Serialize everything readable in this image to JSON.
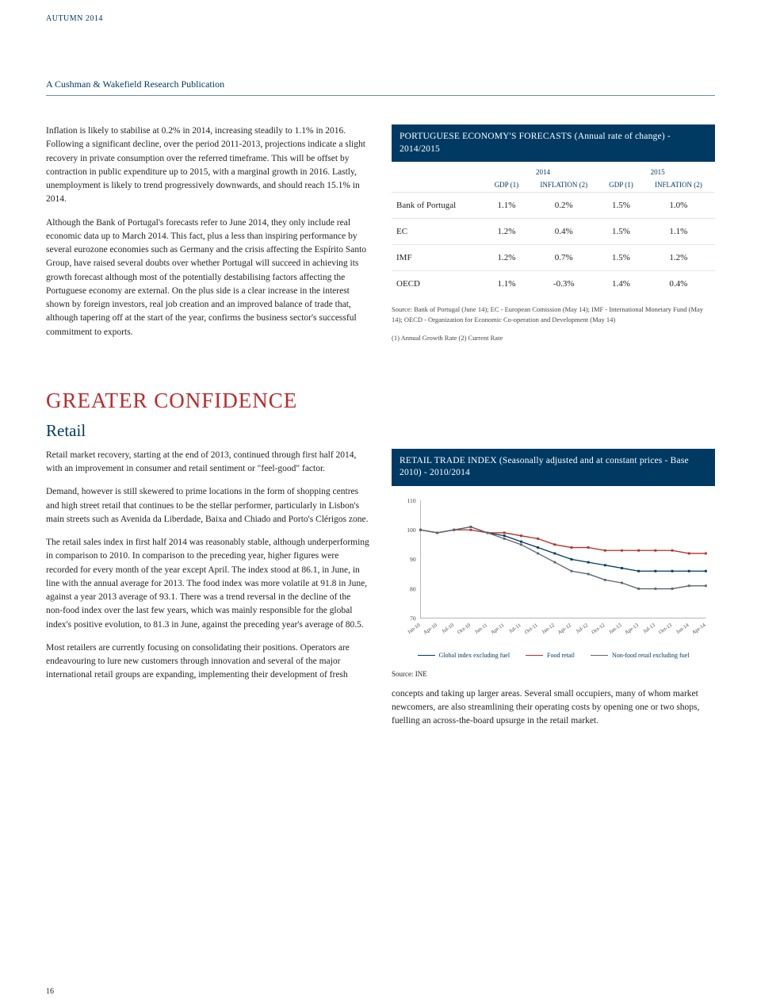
{
  "header": {
    "season": "AUTUMN 2014",
    "publication": "A Cushman & Wakefield Research Publication"
  },
  "intro": {
    "p1": "Inflation is likely to stabilise at 0.2% in 2014, increasing steadily to 1.1% in 2016. Following a significant decline, over the period 2011-2013, projections indicate a slight recovery in private consumption over the referred timeframe. This will be offset by contraction in public expenditure up to 2015, with a marginal growth in 2016. Lastly, unemployment is likely to trend progressively downwards, and should reach 15.1% in 2014.",
    "p2": "Although the Bank of Portugal's forecasts refer to June 2014, they only include real economic data up to March 2014. This fact, plus a less than inspiring performance by several eurozone economies such as Germany and the crisis affecting the Espírito Santo Group, have raised several doubts over whether Portugal will succeed in achieving its growth forecast although most of the potentially destabilising factors affecting the Portuguese economy are external. On the plus side is a clear increase in the interest shown by foreign investors, real job creation and an improved balance of trade that, although tapering off at the start of the year, confirms the business sector's successful commitment to exports."
  },
  "forecast_panel": {
    "title": "PORTUGUESE ECONOMY'S FORECASTS (Annual rate of change) - 2014/2015",
    "year1": "2014",
    "year2": "2015",
    "col_gdp": "GDP (1)",
    "col_inf": "INFLATION (2)",
    "rows": [
      {
        "label": "Bank of Portugal",
        "v1": "1.1%",
        "v2": "0.2%",
        "v3": "1.5%",
        "v4": "1.0%"
      },
      {
        "label": "EC",
        "v1": "1.2%",
        "v2": "0.4%",
        "v3": "1.5%",
        "v4": "1.1%"
      },
      {
        "label": "IMF",
        "v1": "1.2%",
        "v2": "0.7%",
        "v3": "1.5%",
        "v4": "1.2%"
      },
      {
        "label": "OECD",
        "v1": "1.1%",
        "v2": "-0.3%",
        "v3": "1.4%",
        "v4": "0.4%"
      }
    ],
    "source": "Source: Bank of Portugal (June 14); EC - European Comission (May 14); IMF - International Monetary Fund (May 14); OECD - Organization for Economic Co-operation and Development (May 14)",
    "footnote": "(1) Annual Growth Rate          (2) Current Rate"
  },
  "section2": {
    "h1": "GREATER CONFIDENCE",
    "h2": "Retail",
    "left": {
      "p1": "Retail market recovery, starting at the end of 2013, continued through first half 2014, with an improvement in consumer and retail sentiment or \"feel-good\" factor.",
      "p2": "Demand, however is still skewered to prime locations in the form of shopping centres and high street retail that continues to be the stellar performer, particularly in Lisbon's main streets such as Avenida da Liberdade, Baixa and Chiado and Porto's Clérigos zone.",
      "p3": "The retail sales index in first half 2014 was reasonably stable, although underperforming in comparison to 2010. In comparison to the preceding year, higher figures were recorded for every month of the year except April. The index stood at 86.1, in June, in line with the annual average for 2013. The food index was more volatile at 91.8 in June, against a year 2013 average of 93.1. There was a trend reversal in the decline of the non-food index over the last few years, which was mainly responsible for the global index's positive evolution, to 81.3 in June, against the preceding year's average of 80.5.",
      "p4": "Most retailers are currently focusing on consolidating their positions. Operators are endeavouring to lure new customers through innovation and several of the major international retail groups are expanding, implementing their development of fresh"
    },
    "right": {
      "chart_title": "RETAIL TRADE INDEX (Seasonally adjusted and at constant prices - Base 2010) - 2010/2014",
      "chart": {
        "type": "line",
        "y_ticks": [
          70,
          80,
          90,
          100,
          110
        ],
        "x_labels": [
          "Jan-10",
          "Apr-10",
          "Jul-10",
          "Oct-10",
          "Jan-11",
          "Apr-11",
          "Jul-11",
          "Oct-11",
          "Jan-12",
          "Apr-12",
          "Jul-12",
          "Oct-12",
          "Jan-13",
          "Apr-13",
          "Jul-13",
          "Oct-13",
          "Jan-14",
          "Apr-14"
        ],
        "series": [
          {
            "name": "Global index excluding fuel",
            "color": "#003a63",
            "values": [
              100,
              99,
              100,
              101,
              99,
              98,
              96,
              94,
              92,
              90,
              89,
              88,
              87,
              86,
              86,
              86,
              86,
              86
            ]
          },
          {
            "name": "Food retail",
            "color": "#b5302c",
            "values": [
              100,
              99,
              100,
              100,
              99,
              99,
              98,
              97,
              95,
              94,
              94,
              93,
              93,
              93,
              93,
              93,
              92,
              92
            ]
          },
          {
            "name": "Non-food retail excluding fuel",
            "color": "#5b6770",
            "values": [
              100,
              99,
              100,
              101,
              99,
              97,
              95,
              92,
              89,
              86,
              85,
              83,
              82,
              80,
              80,
              80,
              81,
              81
            ]
          }
        ]
      },
      "chart_source": "Source: INE",
      "p_after": "concepts and taking up larger areas. Several small occupiers, many of whom market newcomers, are also streamlining their operating costs by opening one or two shops, fuelling an across-the-board upsurge in the retail market."
    }
  },
  "page_number": "16"
}
